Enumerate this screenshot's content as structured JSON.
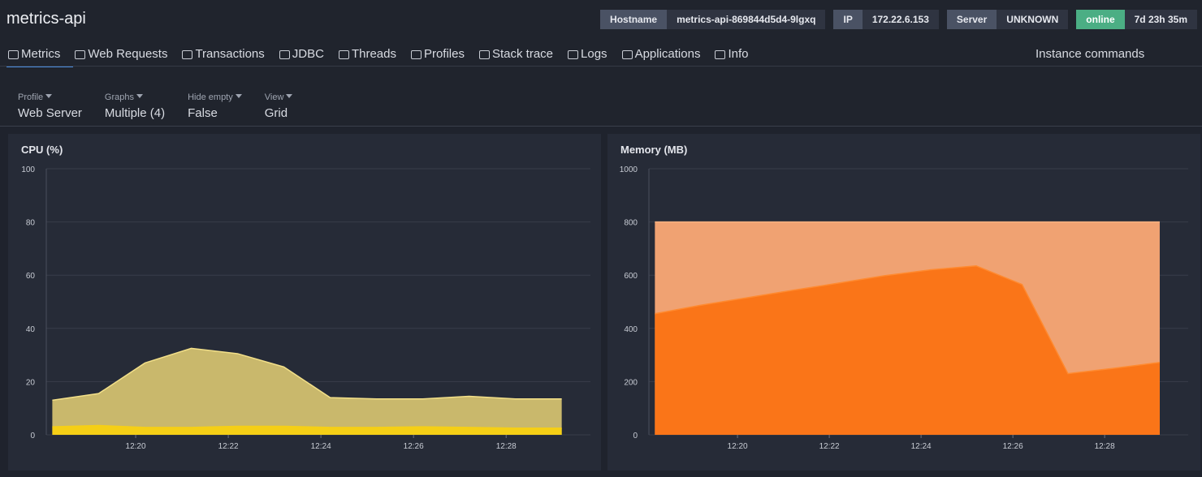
{
  "header": {
    "title": "metrics-api",
    "badges": [
      {
        "label": "Hostname",
        "value": "metrics-api-869844d5d4-9lgxq"
      },
      {
        "label": "IP",
        "value": "172.22.6.153"
      },
      {
        "label": "Server",
        "value": "UNKNOWN"
      },
      {
        "label": "online",
        "value": "7d 23h 35m"
      }
    ]
  },
  "tabs": [
    "Metrics",
    "Web Requests",
    "Transactions",
    "JDBC",
    "Threads",
    "Profiles",
    "Stack trace",
    "Logs",
    "Applications",
    "Info"
  ],
  "instance_commands": "Instance commands",
  "filters": [
    {
      "label": "Profile",
      "value": "Web Server"
    },
    {
      "label": "Graphs",
      "value": "Multiple (4)"
    },
    {
      "label": "Hide empty",
      "value": "False"
    },
    {
      "label": "View",
      "value": "Grid"
    }
  ],
  "chart_data": [
    {
      "type": "area",
      "title": "CPU (%)",
      "x": [
        18.2,
        19.2,
        20.2,
        21.2,
        22.2,
        23.2,
        24.2,
        25.2,
        26.2,
        27.2,
        28.2,
        29.2
      ],
      "xlim": [
        18.07,
        29.82
      ],
      "xticks": [
        {
          "value": 20,
          "label": "12:20"
        },
        {
          "value": 22,
          "label": "12:22"
        },
        {
          "value": 24,
          "label": "12:24"
        },
        {
          "value": 26,
          "label": "12:26"
        },
        {
          "value": 28,
          "label": "12:28"
        }
      ],
      "ylim": [
        0,
        100
      ],
      "yticks": [
        0,
        20,
        40,
        60,
        80,
        100
      ],
      "grid": true,
      "series": [
        {
          "color": "#c9b86c",
          "line_color": "#f3e089",
          "values": [
            13,
            15.5,
            27,
            32.5,
            30.5,
            25.5,
            14,
            13.5,
            13.5,
            14.5,
            13.5,
            13.5
          ]
        },
        {
          "color": "#f5cf16",
          "line_color": "#f5cf16",
          "values": [
            3,
            3.5,
            2.8,
            2.8,
            3.2,
            3.2,
            2.8,
            2.8,
            3,
            2.8,
            2.5,
            2.5
          ]
        }
      ]
    },
    {
      "type": "area",
      "title": "Memory (MB)",
      "x": [
        18.2,
        19.2,
        20.2,
        21.2,
        22.2,
        23.2,
        24.2,
        25.2,
        26.2,
        27.2,
        28.2,
        29.2
      ],
      "xlim": [
        18.07,
        29.82
      ],
      "xticks": [
        {
          "value": 20,
          "label": "12:20"
        },
        {
          "value": 22,
          "label": "12:22"
        },
        {
          "value": 24,
          "label": "12:24"
        },
        {
          "value": 26,
          "label": "12:26"
        },
        {
          "value": 28,
          "label": "12:28"
        }
      ],
      "ylim": [
        0,
        1000
      ],
      "yticks": [
        0,
        200,
        400,
        600,
        800,
        1000
      ],
      "grid": true,
      "series": [
        {
          "color": "#f0a272",
          "line_color": "#f6b080",
          "values": [
            800,
            800,
            800,
            800,
            800,
            800,
            800,
            800,
            800,
            800,
            800,
            800
          ]
        },
        {
          "color": "#fa7518",
          "line_color": "#ff8a30",
          "values": [
            455,
            487,
            515,
            543,
            570,
            598,
            620,
            635,
            565,
            230,
            250,
            272
          ]
        }
      ]
    }
  ]
}
